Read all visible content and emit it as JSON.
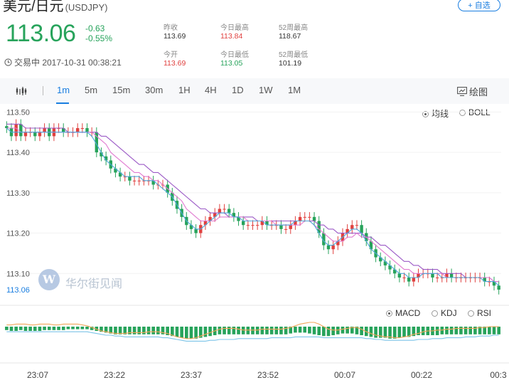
{
  "header": {
    "title": "美元/日元",
    "code": "(USDJPY)",
    "add_label": "+ 自选"
  },
  "quote": {
    "price": "113.06",
    "change": "-0.63",
    "change_pct": "-0.55%",
    "status": "交易中 2017-10-31 00:38:21",
    "stats": [
      {
        "label": "昨收",
        "value": "113.69",
        "tone": "neutral"
      },
      {
        "label": "今日最高",
        "value": "113.84",
        "tone": "up"
      },
      {
        "label": "52周最高",
        "value": "118.67",
        "tone": "neutral"
      },
      {
        "label": "今开",
        "value": "113.69",
        "tone": "up"
      },
      {
        "label": "今日最低",
        "value": "113.05",
        "tone": "down"
      },
      {
        "label": "52周最低",
        "value": "101.19",
        "tone": "neutral"
      }
    ]
  },
  "toolbar": {
    "intervals": [
      "1m",
      "5m",
      "15m",
      "30m",
      "1H",
      "4H",
      "1D",
      "1W",
      "1M"
    ],
    "active_interval": "1m",
    "draw_label": "绘图"
  },
  "main_options": {
    "ma_label": "均线",
    "boll_label": "BOLL",
    "selected": "均线"
  },
  "sub_options": {
    "macd_label": "MACD",
    "kdj_label": "KDJ",
    "rsi_label": "RSI",
    "selected": "MACD"
  },
  "watermark": {
    "logo_letter": "W",
    "text": "华尔街见闻"
  },
  "colors": {
    "up": "#e0413f",
    "down": "#27a35b",
    "accent": "#1a7ee0",
    "ma_fast": "#4da6d9",
    "ma_mid": "#e07ad0",
    "ma_slow": "#9b59c6",
    "macd_dif": "#f2a65a",
    "macd_dea": "#7cc4e8"
  },
  "chart_data": [
    {
      "type": "candlestick",
      "ylim": [
        113.03,
        113.52
      ],
      "y_ticks": [
        "113.50",
        "113.40",
        "113.30",
        "113.20",
        "113.10"
      ],
      "y_tick_values": [
        113.5,
        113.4,
        113.3,
        113.2,
        113.1
      ],
      "last_price_label": "113.06",
      "last_price": 113.06,
      "x_tick_labels": [
        "23:07",
        "23:22",
        "23:37",
        "23:52",
        "00:07",
        "00:22",
        "00:3"
      ],
      "close_series": [
        113.46,
        113.44,
        113.47,
        113.44,
        113.45,
        113.45,
        113.44,
        113.45,
        113.46,
        113.44,
        113.46,
        113.46,
        113.45,
        113.45,
        113.45,
        113.46,
        113.46,
        113.45,
        113.45,
        113.4,
        113.39,
        113.38,
        113.36,
        113.35,
        113.34,
        113.34,
        113.33,
        113.33,
        113.33,
        113.33,
        113.33,
        113.32,
        113.32,
        113.32,
        113.3,
        113.28,
        113.26,
        113.24,
        113.22,
        113.21,
        113.2,
        113.22,
        113.23,
        113.24,
        113.25,
        113.26,
        113.26,
        113.25,
        113.24,
        113.23,
        113.22,
        113.22,
        113.22,
        113.22,
        113.23,
        113.22,
        113.22,
        113.22,
        113.21,
        113.21,
        113.22,
        113.23,
        113.24,
        113.24,
        113.24,
        113.23,
        113.2,
        113.17,
        113.16,
        113.17,
        113.18,
        113.2,
        113.21,
        113.22,
        113.22,
        113.2,
        113.18,
        113.16,
        113.14,
        113.13,
        113.12,
        113.11,
        113.1,
        113.09,
        113.09,
        113.08,
        113.09,
        113.1,
        113.1,
        113.1,
        113.09,
        113.09,
        113.09,
        113.1,
        113.09,
        113.09,
        113.09,
        113.09,
        113.09,
        113.09,
        113.09,
        113.08,
        113.08,
        113.07,
        113.06
      ],
      "ma_fast_series": [
        113.46,
        113.45,
        113.45,
        113.45,
        113.45,
        113.45,
        113.45,
        113.45,
        113.45,
        113.45,
        113.45,
        113.45,
        113.45,
        113.45,
        113.45,
        113.45,
        113.45,
        113.45,
        113.44,
        113.42,
        113.4,
        113.38,
        113.37,
        113.36,
        113.35,
        113.34,
        113.34,
        113.34,
        113.34,
        113.33,
        113.33,
        113.33,
        113.32,
        113.31,
        113.3,
        113.29,
        113.27,
        113.25,
        113.23,
        113.22,
        113.21,
        113.21,
        113.22,
        113.23,
        113.24,
        113.25,
        113.25,
        113.25,
        113.24,
        113.24,
        113.23,
        113.23,
        113.23,
        113.23,
        113.23,
        113.22,
        113.22,
        113.22,
        113.22,
        113.22,
        113.22,
        113.23,
        113.23,
        113.23,
        113.23,
        113.22,
        113.2,
        113.18,
        113.17,
        113.17,
        113.18,
        113.19,
        113.2,
        113.21,
        113.21,
        113.2,
        113.18,
        113.16,
        113.15,
        113.14,
        113.13,
        113.12,
        113.11,
        113.1,
        113.1,
        113.09,
        113.09,
        113.09,
        113.1,
        113.1,
        113.1,
        113.1,
        113.09,
        113.09,
        113.09,
        113.09,
        113.09,
        113.09,
        113.09,
        113.09,
        113.09,
        113.08,
        113.08,
        113.08,
        113.07
      ],
      "ma_mid_series": [
        113.46,
        113.46,
        113.46,
        113.45,
        113.45,
        113.45,
        113.45,
        113.45,
        113.45,
        113.45,
        113.45,
        113.45,
        113.45,
        113.45,
        113.45,
        113.45,
        113.45,
        113.45,
        113.45,
        113.44,
        113.43,
        113.42,
        113.4,
        113.39,
        113.38,
        113.37,
        113.36,
        113.35,
        113.35,
        113.34,
        113.34,
        113.33,
        113.33,
        113.32,
        113.31,
        113.3,
        113.29,
        113.28,
        113.26,
        113.25,
        113.24,
        113.23,
        113.23,
        113.23,
        113.23,
        113.24,
        113.24,
        113.24,
        113.24,
        113.24,
        113.24,
        113.23,
        113.23,
        113.23,
        113.23,
        113.23,
        113.23,
        113.22,
        113.22,
        113.22,
        113.22,
        113.22,
        113.22,
        113.23,
        113.23,
        113.22,
        113.21,
        113.2,
        113.19,
        113.18,
        113.18,
        113.18,
        113.19,
        113.19,
        113.2,
        113.19,
        113.19,
        113.18,
        113.17,
        113.16,
        113.15,
        113.14,
        113.13,
        113.12,
        113.11,
        113.11,
        113.1,
        113.1,
        113.1,
        113.1,
        113.1,
        113.1,
        113.1,
        113.09,
        113.09,
        113.09,
        113.09,
        113.09,
        113.09,
        113.09,
        113.09,
        113.09,
        113.09,
        113.08,
        113.08
      ],
      "ma_slow_series": [
        113.47,
        113.47,
        113.47,
        113.47,
        113.46,
        113.46,
        113.46,
        113.46,
        113.46,
        113.46,
        113.46,
        113.46,
        113.46,
        113.45,
        113.45,
        113.45,
        113.45,
        113.45,
        113.45,
        113.45,
        113.44,
        113.44,
        113.43,
        113.42,
        113.41,
        113.4,
        113.39,
        113.38,
        113.37,
        113.37,
        113.36,
        113.35,
        113.35,
        113.34,
        113.33,
        113.32,
        113.31,
        113.3,
        113.29,
        113.28,
        113.27,
        113.26,
        113.26,
        113.25,
        113.25,
        113.25,
        113.25,
        113.24,
        113.24,
        113.24,
        113.24,
        113.24,
        113.24,
        113.23,
        113.23,
        113.23,
        113.23,
        113.23,
        113.23,
        113.23,
        113.23,
        113.23,
        113.23,
        113.23,
        113.23,
        113.23,
        113.22,
        113.22,
        113.21,
        113.21,
        113.2,
        113.2,
        113.2,
        113.2,
        113.2,
        113.2,
        113.19,
        113.19,
        113.18,
        113.17,
        113.17,
        113.16,
        113.15,
        113.14,
        113.13,
        113.13,
        113.12,
        113.12,
        113.11,
        113.11,
        113.11,
        113.11,
        113.1,
        113.1,
        113.1,
        113.1,
        113.1,
        113.09,
        113.09,
        113.09,
        113.09,
        113.09,
        113.09,
        113.08,
        113.08
      ]
    },
    {
      "type": "bar",
      "indicator": "MACD",
      "histogram": [
        -0.4,
        -0.5,
        -0.5,
        -0.4,
        -0.5,
        -0.5,
        -0.5,
        -0.5,
        -0.4,
        -0.4,
        -0.4,
        -0.4,
        -0.4,
        -0.3,
        -0.3,
        -0.3,
        -0.3,
        -0.3,
        -0.4,
        -0.5,
        -0.6,
        -0.7,
        -0.8,
        -0.9,
        -0.9,
        -0.9,
        -0.9,
        -0.9,
        -0.9,
        -0.9,
        -0.9,
        -0.9,
        -0.9,
        -0.9,
        -1.0,
        -1.1,
        -1.2,
        -1.3,
        -1.4,
        -1.4,
        -1.4,
        -1.3,
        -1.2,
        -1.1,
        -1.0,
        -0.9,
        -0.9,
        -0.9,
        -0.9,
        -0.9,
        -0.9,
        -0.9,
        -0.9,
        -0.9,
        -0.9,
        -0.9,
        -0.9,
        -0.9,
        -0.9,
        -0.9,
        -0.8,
        -0.7,
        -0.7,
        -0.7,
        -0.8,
        -0.9,
        -1.0,
        -1.1,
        -1.1,
        -1.0,
        -0.9,
        -0.8,
        -0.8,
        -0.8,
        -0.9,
        -1.0,
        -1.1,
        -1.2,
        -1.3,
        -1.3,
        -1.3,
        -1.4,
        -1.4,
        -1.3,
        -1.2,
        -1.2,
        -1.1,
        -1.0,
        -1.0,
        -1.0,
        -1.0,
        -1.0,
        -0.9,
        -0.9,
        -0.9,
        -0.9,
        -0.9,
        -0.9,
        -0.9,
        -0.9,
        -0.9,
        -0.9,
        -0.9,
        -0.9,
        -0.9
      ],
      "dif": [
        0.2,
        0.2,
        0.3,
        0.3,
        0.3,
        0.2,
        0.2,
        0.3,
        0.3,
        0.3,
        0.2,
        0.2,
        0.3,
        0.3,
        0.3,
        0.3,
        0.2,
        0.1,
        -0.1,
        -0.3,
        -0.5,
        -0.6,
        -0.7,
        -0.8,
        -0.8,
        -0.8,
        -0.7,
        -0.7,
        -0.7,
        -0.7,
        -0.6,
        -0.6,
        -0.6,
        -0.7,
        -0.8,
        -1.0,
        -1.2,
        -1.3,
        -1.4,
        -1.4,
        -1.3,
        -1.1,
        -0.9,
        -0.7,
        -0.5,
        -0.3,
        -0.2,
        -0.2,
        -0.2,
        -0.3,
        -0.4,
        -0.4,
        -0.4,
        -0.4,
        -0.3,
        -0.3,
        -0.3,
        -0.3,
        -0.3,
        -0.2,
        -0.1,
        0.1,
        0.3,
        0.4,
        0.5,
        0.5,
        0.3,
        0.0,
        -0.3,
        -0.4,
        -0.4,
        -0.3,
        -0.2,
        -0.1,
        -0.1,
        -0.3,
        -0.6,
        -0.8,
        -1.0,
        -1.1,
        -1.2,
        -1.2,
        -1.3,
        -1.3,
        -1.2,
        -1.1,
        -0.9,
        -0.8,
        -0.6,
        -0.5,
        -0.5,
        -0.4,
        -0.4,
        -0.3,
        -0.3,
        -0.2,
        -0.2,
        -0.2,
        -0.2,
        -0.2,
        -0.1,
        -0.1,
        0.0,
        0.0,
        0.0
      ],
      "dea": [
        -0.6,
        -0.6,
        -0.6,
        -0.6,
        -0.6,
        -0.6,
        -0.6,
        -0.6,
        -0.6,
        -0.6,
        -0.6,
        -0.6,
        -0.6,
        -0.6,
        -0.6,
        -0.6,
        -0.6,
        -0.6,
        -0.7,
        -0.8,
        -0.9,
        -1.0,
        -1.0,
        -1.1,
        -1.1,
        -1.2,
        -1.2,
        -1.2,
        -1.2,
        -1.2,
        -1.2,
        -1.2,
        -1.2,
        -1.3,
        -1.3,
        -1.4,
        -1.5,
        -1.6,
        -1.7,
        -1.7,
        -1.7,
        -1.7,
        -1.7,
        -1.6,
        -1.6,
        -1.5,
        -1.5,
        -1.5,
        -1.5,
        -1.4,
        -1.4,
        -1.4,
        -1.4,
        -1.4,
        -1.4,
        -1.4,
        -1.3,
        -1.3,
        -1.3,
        -1.3,
        -1.3,
        -1.2,
        -1.2,
        -1.2,
        -1.2,
        -1.2,
        -1.2,
        -1.3,
        -1.3,
        -1.3,
        -1.3,
        -1.3,
        -1.3,
        -1.3,
        -1.3,
        -1.3,
        -1.4,
        -1.4,
        -1.5,
        -1.5,
        -1.6,
        -1.6,
        -1.6,
        -1.6,
        -1.6,
        -1.6,
        -1.6,
        -1.5,
        -1.5,
        -1.5,
        -1.4,
        -1.4,
        -1.4,
        -1.3,
        -1.3,
        -1.3,
        -1.3,
        -1.2,
        -1.2,
        -1.2,
        -1.1,
        -1.1,
        -1.1,
        -1.0,
        -1.0
      ]
    }
  ]
}
